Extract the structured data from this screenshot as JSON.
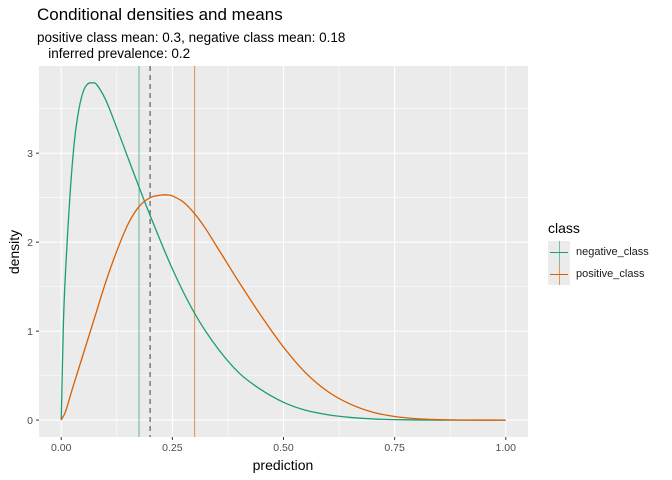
{
  "chart_data": {
    "type": "line",
    "title": "Conditional densities and means",
    "subtitle": "positive class mean: 0.3, negative class mean: 0.18\n   inferred prevalence: 0.2",
    "xlabel": "prediction",
    "ylabel": "density",
    "xlim": [
      -0.05,
      1.05
    ],
    "ylim": [
      -0.19,
      3.98
    ],
    "x_ticks": [
      0,
      0.25,
      0.5,
      0.75,
      1.0
    ],
    "x_tick_labels": [
      "0.00",
      "0.25",
      "0.50",
      "0.75",
      "1.00"
    ],
    "y_ticks": [
      0,
      1,
      2,
      3
    ],
    "y_tick_labels": [
      "0",
      "1",
      "2",
      "3"
    ],
    "grid": true,
    "series": [
      {
        "name": "negative_class",
        "color": "#1b9e77",
        "x": [
          0,
          0.005,
          0.01,
          0.02,
          0.03,
          0.04,
          0.05,
          0.06,
          0.07,
          0.08,
          0.1,
          0.12,
          0.15,
          0.175,
          0.2,
          0.25,
          0.3,
          0.35,
          0.4,
          0.45,
          0.5,
          0.55,
          0.6,
          0.65,
          0.7,
          0.75,
          0.8,
          0.85,
          0.9,
          1.0
        ],
        "y": [
          0,
          1.1,
          1.7,
          2.55,
          3.15,
          3.5,
          3.7,
          3.78,
          3.79,
          3.77,
          3.6,
          3.35,
          2.95,
          2.62,
          2.3,
          1.7,
          1.2,
          0.82,
          0.53,
          0.34,
          0.2,
          0.11,
          0.06,
          0.03,
          0.013,
          0.005,
          0.002,
          0.0005,
          0.0001,
          0
        ]
      },
      {
        "name": "positive_class",
        "color": "#d95f02",
        "x": [
          0,
          0.01,
          0.025,
          0.05,
          0.075,
          0.1,
          0.125,
          0.15,
          0.175,
          0.2,
          0.225,
          0.24,
          0.25,
          0.275,
          0.3,
          0.325,
          0.35,
          0.375,
          0.4,
          0.45,
          0.5,
          0.55,
          0.6,
          0.65,
          0.7,
          0.75,
          0.8,
          0.85,
          0.9,
          0.95,
          1.0
        ],
        "y": [
          0,
          0.1,
          0.35,
          0.75,
          1.15,
          1.55,
          1.9,
          2.2,
          2.4,
          2.5,
          2.53,
          2.53,
          2.52,
          2.45,
          2.32,
          2.15,
          1.95,
          1.75,
          1.55,
          1.17,
          0.82,
          0.53,
          0.32,
          0.18,
          0.09,
          0.04,
          0.015,
          0.005,
          0.001,
          0.0002,
          0
        ]
      }
    ],
    "vlines": [
      {
        "name": "negative_class",
        "x": 0.175,
        "color": "#1b9e77",
        "opacity": 0.6,
        "style": "solid"
      },
      {
        "name": "positive_class",
        "x": 0.3,
        "color": "#d95f02",
        "opacity": 0.6,
        "style": "solid"
      },
      {
        "name": "inferred_prevalence",
        "x": 0.2,
        "color": "#808080",
        "style": "dashed"
      }
    ],
    "legend": {
      "title": "class",
      "position": "right",
      "items": [
        {
          "label": "negative_class",
          "color": "#1b9e77"
        },
        {
          "label": "positive_class",
          "color": "#d95f02"
        }
      ]
    }
  }
}
